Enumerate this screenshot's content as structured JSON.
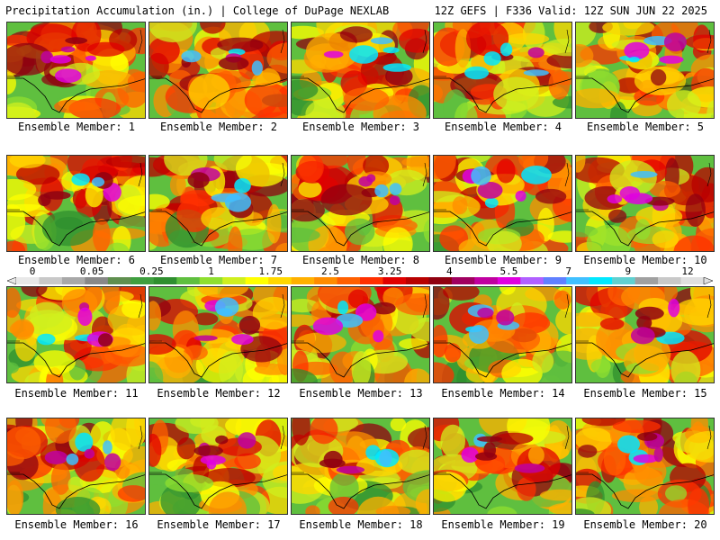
{
  "header": {
    "left_title": "Precipitation Accumulation (in.) | College of DuPage NEXLAB",
    "right_title": "12Z GEFS | F336 Valid: 12Z SUN JUN 22 2025"
  },
  "colorbar": {
    "tick_labels": [
      "0",
      "0.05",
      "0.25",
      "1",
      "1.75",
      "2.5",
      "3.25",
      "4",
      "5.5",
      "7",
      "9",
      "12"
    ],
    "colors": [
      "#e8e8e8",
      "#c8c8c8",
      "#a8a8a8",
      "#888888",
      "#5f8f4f",
      "#3f9f3f",
      "#2f8f2f",
      "#5fbf3f",
      "#8fdf2f",
      "#cfef1f",
      "#ffff00",
      "#ffd700",
      "#ffb000",
      "#ff8c00",
      "#ff6000",
      "#ff3000",
      "#e00000",
      "#b80000",
      "#900010",
      "#a00060",
      "#c000a0",
      "#e000e0",
      "#b060ff",
      "#6080ff",
      "#40c0ff",
      "#00e8ff",
      "#60d0d0",
      "#a0a0a0",
      "#c8c8c8",
      "#e0e0e0"
    ]
  },
  "members": [
    {
      "label": "Ensemble Member: 1"
    },
    {
      "label": "Ensemble Member: 2"
    },
    {
      "label": "Ensemble Member: 3"
    },
    {
      "label": "Ensemble Member: 4"
    },
    {
      "label": "Ensemble Member: 5"
    },
    {
      "label": "Ensemble Member: 6"
    },
    {
      "label": "Ensemble Member: 7"
    },
    {
      "label": "Ensemble Member: 8"
    },
    {
      "label": "Ensemble Member: 9"
    },
    {
      "label": "Ensemble Member: 10"
    },
    {
      "label": "Ensemble Member: 11"
    },
    {
      "label": "Ensemble Member: 12"
    },
    {
      "label": "Ensemble Member: 13"
    },
    {
      "label": "Ensemble Member: 14"
    },
    {
      "label": "Ensemble Member: 15"
    },
    {
      "label": "Ensemble Member: 16"
    },
    {
      "label": "Ensemble Member: 17"
    },
    {
      "label": "Ensemble Member: 18"
    },
    {
      "label": "Ensemble Member: 19"
    },
    {
      "label": "Ensemble Member: 20"
    }
  ]
}
